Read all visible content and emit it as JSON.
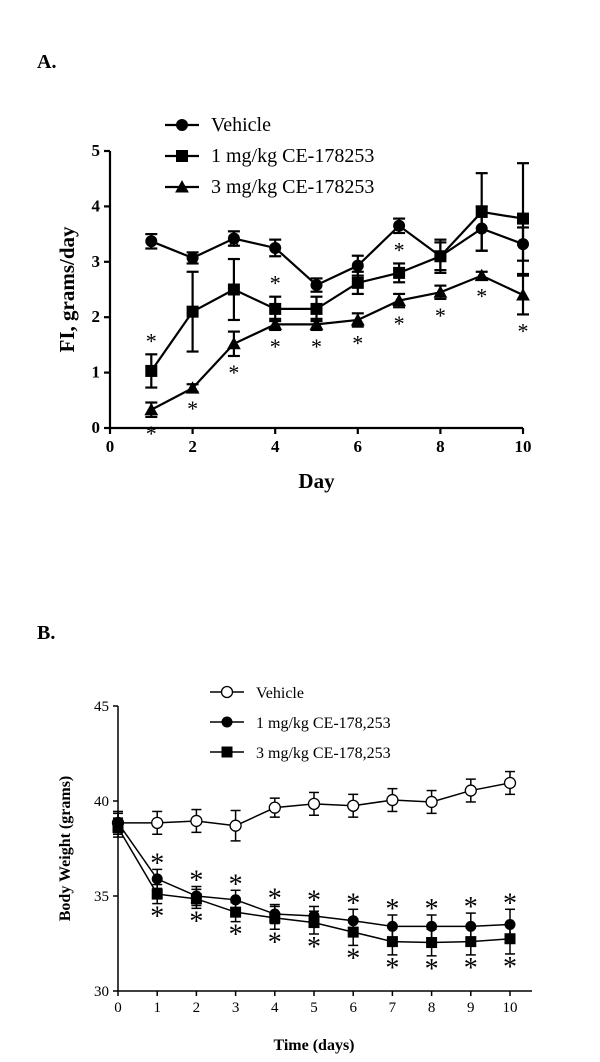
{
  "panels": {
    "a_label": "A.",
    "b_label": "B."
  },
  "chart_data": [
    {
      "type": "line",
      "panel": "A.",
      "xlabel": "Day",
      "ylabel": "FI, grams/day",
      "xlim": [
        0,
        10
      ],
      "ylim": [
        0,
        5
      ],
      "xticks": [
        "0",
        "2",
        "4",
        "6",
        "8",
        "10"
      ],
      "yticks": [
        "0",
        "1",
        "2",
        "3",
        "4",
        "5"
      ],
      "legend_position": "top-left",
      "marker_star": "*",
      "x": [
        1,
        2,
        3,
        4,
        5,
        6,
        7,
        8,
        9,
        10
      ],
      "series": [
        {
          "name": "Vehicle",
          "marker": "filled-circle",
          "values": [
            3.37,
            3.07,
            3.42,
            3.25,
            2.58,
            2.93,
            3.65,
            3.1,
            3.6,
            3.32
          ],
          "errors": [
            0.13,
            0.1,
            0.13,
            0.15,
            0.12,
            0.18,
            0.13,
            0.3,
            0.4,
            0.3
          ],
          "stars": []
        },
        {
          "name": "1 mg/kg CE-178253",
          "marker": "filled-square",
          "values": [
            1.03,
            2.1,
            2.5,
            2.15,
            2.15,
            2.62,
            2.8,
            3.1,
            3.9,
            3.78
          ],
          "errors": [
            0.3,
            0.72,
            0.55,
            0.22,
            0.22,
            0.2,
            0.17,
            0.25,
            0.7,
            1.0
          ],
          "stars": [
            1,
            2,
            3,
            4,
            7
          ]
        },
        {
          "name": "3 mg/kg CE-178253",
          "marker": "filled-triangle",
          "values": [
            0.33,
            0.72,
            1.52,
            1.87,
            1.87,
            1.95,
            2.3,
            2.45,
            2.75,
            2.4
          ],
          "errors": [
            0.13,
            0.07,
            0.22,
            0.1,
            0.1,
            0.12,
            0.12,
            0.12,
            0.07,
            0.35
          ],
          "stars": [
            1,
            2,
            3,
            4,
            5,
            6,
            7,
            8,
            9,
            10
          ]
        }
      ]
    },
    {
      "type": "line",
      "panel": "B.",
      "xlabel": "Time (days)",
      "ylabel": "Body Weight (grams)",
      "xlim": [
        0,
        10
      ],
      "ylim": [
        30,
        45
      ],
      "xticks": [
        "0",
        "1",
        "2",
        "3",
        "4",
        "5",
        "6",
        "7",
        "8",
        "9",
        "10"
      ],
      "yticks": [
        "30",
        "35",
        "40",
        "45"
      ],
      "legend_position": "top-center",
      "marker_star": "*",
      "x": [
        0,
        1,
        2,
        3,
        4,
        5,
        6,
        7,
        8,
        9,
        10
      ],
      "series": [
        {
          "name": "Vehicle",
          "marker": "open-circle",
          "values": [
            38.85,
            38.85,
            38.95,
            38.7,
            39.65,
            39.85,
            39.75,
            40.05,
            39.95,
            40.55,
            40.95
          ],
          "errors": [
            0.6,
            0.6,
            0.6,
            0.8,
            0.5,
            0.6,
            0.6,
            0.6,
            0.6,
            0.6,
            0.6
          ],
          "stars": []
        },
        {
          "name": "1 mg/kg CE-178,253",
          "marker": "filled-circle",
          "values": [
            38.85,
            35.9,
            35.0,
            34.8,
            34.05,
            33.95,
            33.7,
            33.4,
            33.4,
            33.4,
            33.5
          ],
          "errors": [
            0.5,
            0.5,
            0.5,
            0.5,
            0.5,
            0.5,
            0.6,
            0.6,
            0.6,
            0.7,
            0.8
          ],
          "stars": [
            1,
            2,
            3,
            4,
            5,
            6,
            7,
            8,
            9,
            10
          ]
        },
        {
          "name": "3 mg/kg CE-178,253",
          "marker": "filled-square",
          "values": [
            38.6,
            35.1,
            34.85,
            34.15,
            33.85,
            33.6,
            33.1,
            32.6,
            32.55,
            32.6,
            32.75
          ],
          "errors": [
            0.5,
            0.5,
            0.5,
            0.5,
            0.6,
            0.6,
            0.7,
            0.7,
            0.7,
            0.7,
            0.8
          ],
          "stars": [
            1,
            2,
            3,
            4,
            5,
            6,
            7,
            8,
            9,
            10
          ]
        }
      ]
    }
  ]
}
